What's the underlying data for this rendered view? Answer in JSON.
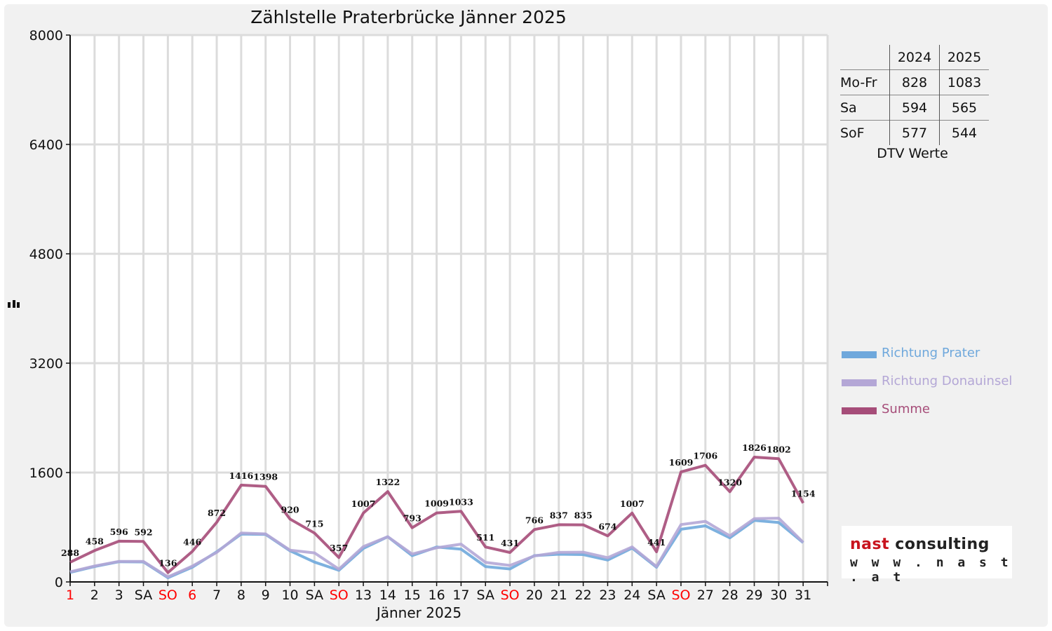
{
  "chart_data": {
    "type": "line",
    "title": "Zählstelle Praterbrücke Jänner 2025",
    "xlabel": "Jänner 2025",
    "ylabel": "",
    "ylim": [
      0,
      8000
    ],
    "yticks": [
      0,
      1600,
      3200,
      4800,
      6400,
      8000
    ],
    "grid": true,
    "legend_position": "right",
    "categories": [
      "1",
      "2",
      "3",
      "SA",
      "SO",
      "6",
      "7",
      "8",
      "9",
      "10",
      "SA",
      "SO",
      "13",
      "14",
      "15",
      "16",
      "17",
      "SA",
      "SO",
      "20",
      "21",
      "22",
      "23",
      "24",
      "SA",
      "SO",
      "27",
      "28",
      "29",
      "30",
      "31"
    ],
    "red_categories": [
      0,
      4,
      5,
      11,
      18,
      25
    ],
    "series": [
      {
        "name": "Richtung Prater",
        "color": "#6fa8dc",
        "show_labels": false,
        "values": [
          140,
          225,
          295,
          292,
          62,
          215,
          440,
          700,
          695,
          455,
          290,
          170,
          490,
          660,
          385,
          510,
          480,
          225,
          190,
          385,
          405,
          400,
          320,
          495,
          215,
          770,
          820,
          645,
          900,
          870,
          575
        ]
      },
      {
        "name": "Richtung Donauinsel",
        "color": "#b4a7d6",
        "show_labels": false,
        "values": [
          148,
          233,
          301,
          300,
          74,
          231,
          432,
          716,
          703,
          465,
          425,
          187,
          517,
          662,
          408,
          499,
          553,
          286,
          241,
          381,
          432,
          435,
          354,
          512,
          226,
          839,
          886,
          675,
          926,
          932,
          579
        ]
      },
      {
        "name": "Summe",
        "color": "#a64d79",
        "show_labels": true,
        "values": [
          288,
          458,
          596,
          592,
          136,
          446,
          872,
          1416,
          1398,
          920,
          715,
          357,
          1007,
          1322,
          793,
          1009,
          1033,
          511,
          431,
          766,
          837,
          835,
          674,
          1007,
          441,
          1609,
          1706,
          1320,
          1826,
          1802,
          1154
        ]
      }
    ]
  },
  "dtv_table": {
    "headers": [
      "",
      "2024",
      "2025"
    ],
    "rows": [
      {
        "label": "Mo-Fr",
        "v2024": "828",
        "v2025": "1083"
      },
      {
        "label": "Sa",
        "v2024": "594",
        "v2025": "565"
      },
      {
        "label": "SoF",
        "v2024": "577",
        "v2025": "544"
      }
    ],
    "caption": "DTV Werte"
  },
  "logo": {
    "word1": "nast",
    "word2": "consulting",
    "url": "www.nast.at"
  }
}
